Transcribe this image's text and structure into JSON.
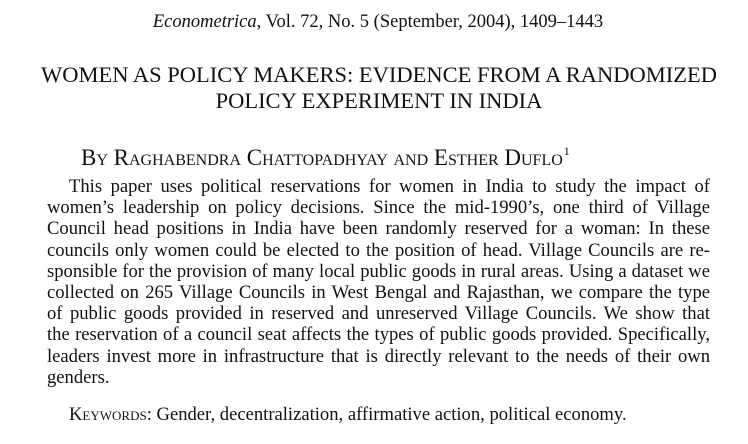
{
  "header": {
    "journal_name": "Econometrica",
    "journal_details": ", Vol. 72, No. 5 (September, 2004), 1409–1443"
  },
  "title": {
    "line1": "WOMEN AS POLICY MAKERS: EVIDENCE FROM A RANDOMIZED",
    "line2": "POLICY EXPERIMENT IN INDIA"
  },
  "byline": {
    "prefix": "By",
    "authors": "Raghabendra Chattopadhyay and Esther Duflo",
    "footnote_mark": "1"
  },
  "abstract": {
    "lines": [
      "This paper uses political reservations for women in India to study the impact of",
      "women’s leadership on policy decisions. Since the mid-1990’s, one third of Village",
      "Council head positions in India have been randomly reserved for a woman: In these",
      "councils only women could be elected to the position of head. Village Councils are re-",
      "sponsible for the provision of many local public goods in rural areas. Using a dataset we",
      "collected on 265 Village Councils in West Bengal and Rajasthan, we compare the type",
      "of public goods provided in reserved and unreserved Village Councils. We show that",
      "the reservation of a council seat affects the types of public goods provided. Specifically,",
      "leaders invest more in infrastructure that is directly relevant to the needs of their own",
      "genders."
    ]
  },
  "keywords": {
    "label": "Keywords:",
    "text": " Gender, decentralization, affirmative action, political economy."
  }
}
